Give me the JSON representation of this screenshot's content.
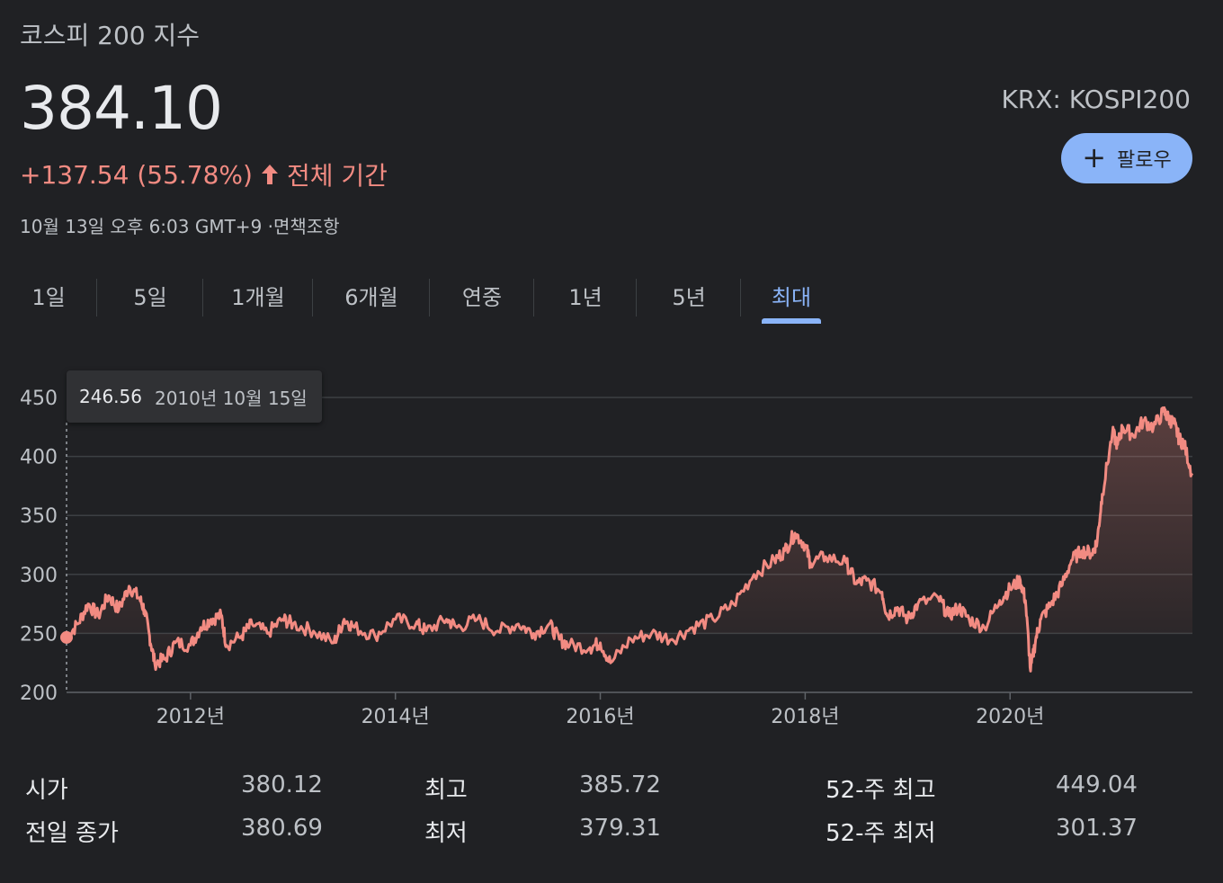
{
  "header": {
    "title": "코스피 200 지수",
    "price": "384.10",
    "change": "+137.54 (55.78%)",
    "period": "전체 기간",
    "timestamp": "10월 13일 오후 6:03 GMT+9 ·면책조항",
    "ticker": "KRX: KOSPI200",
    "follow_label": "팔로우"
  },
  "tabs": [
    {
      "label": "1일"
    },
    {
      "label": "5일"
    },
    {
      "label": "1개월"
    },
    {
      "label": "6개월"
    },
    {
      "label": "연중"
    },
    {
      "label": "1년"
    },
    {
      "label": "5년"
    },
    {
      "label": "최대",
      "active": true
    }
  ],
  "tooltip": {
    "value": "246.56",
    "date": "2010년 10월 15일"
  },
  "colors": {
    "background": "#202124",
    "line": "#f28b82",
    "accent": "#8ab4f8"
  },
  "chart_data": {
    "type": "area",
    "x_range": [
      2010.79,
      2021.78
    ],
    "ylim": [
      200,
      450
    ],
    "y_ticks": [
      200,
      250,
      300,
      350,
      400,
      450
    ],
    "x_ticks": [
      {
        "value": 2012,
        "label": "2012년"
      },
      {
        "value": 2014,
        "label": "2014년"
      },
      {
        "value": 2016,
        "label": "2016년"
      },
      {
        "value": 2018,
        "label": "2018년"
      },
      {
        "value": 2020,
        "label": "2020년"
      }
    ],
    "grid": true,
    "series": [
      {
        "x": [
          2010.79,
          2010.9,
          2011.0,
          2011.1,
          2011.2,
          2011.3,
          2011.4,
          2011.5,
          2011.55,
          2011.6,
          2011.65,
          2011.75,
          2011.85,
          2012.0,
          2012.1,
          2012.2,
          2012.3,
          2012.35,
          2012.5,
          2012.6,
          2012.75,
          2012.9,
          2013.0,
          2013.2,
          2013.4,
          2013.5,
          2013.6,
          2013.8,
          2014.0,
          2014.2,
          2014.3,
          2014.5,
          2014.6,
          2014.8,
          2015.0,
          2015.2,
          2015.35,
          2015.5,
          2015.6,
          2015.7,
          2015.9,
          2016.0,
          2016.1,
          2016.3,
          2016.5,
          2016.7,
          2016.9,
          2017.1,
          2017.3,
          2017.5,
          2017.7,
          2017.8,
          2017.9,
          2018.0,
          2018.05,
          2018.2,
          2018.4,
          2018.5,
          2018.6,
          2018.75,
          2018.8,
          2018.9,
          2019.0,
          2019.1,
          2019.3,
          2019.4,
          2019.5,
          2019.6,
          2019.75,
          2019.9,
          2020.0,
          2020.1,
          2020.15,
          2020.2,
          2020.25,
          2020.3,
          2020.4,
          2020.5,
          2020.6,
          2020.7,
          2020.8,
          2020.85,
          2020.9,
          2021.0,
          2021.05,
          2021.1,
          2021.2,
          2021.3,
          2021.4,
          2021.5,
          2021.55,
          2021.6,
          2021.65,
          2021.7,
          2021.78
        ],
        "y": [
          246.56,
          258,
          275,
          265,
          282,
          270,
          290,
          280,
          270,
          248,
          225,
          228,
          242,
          240,
          255,
          262,
          265,
          240,
          248,
          258,
          250,
          262,
          258,
          252,
          242,
          262,
          255,
          248,
          262,
          258,
          252,
          262,
          255,
          262,
          252,
          258,
          250,
          258,
          245,
          240,
          238,
          242,
          225,
          245,
          250,
          245,
          255,
          262,
          275,
          300,
          312,
          320,
          335,
          325,
          310,
          315,
          310,
          292,
          295,
          285,
          265,
          272,
          262,
          275,
          280,
          265,
          272,
          262,
          255,
          278,
          288,
          295,
          278,
          218,
          245,
          262,
          275,
          290,
          312,
          320,
          318,
          328,
          368,
          420,
          410,
          425,
          418,
          430,
          425,
          438,
          432,
          428,
          415,
          410,
          384.1
        ]
      }
    ]
  },
  "stats": [
    {
      "label": "시가",
      "value": "380.12"
    },
    {
      "label": "최고",
      "value": "385.72"
    },
    {
      "label": "52-주 최고",
      "value": "449.04"
    },
    {
      "label": "전일 종가",
      "value": "380.69"
    },
    {
      "label": "최저",
      "value": "379.31"
    },
    {
      "label": "52-주 최저",
      "value": "301.37"
    }
  ]
}
